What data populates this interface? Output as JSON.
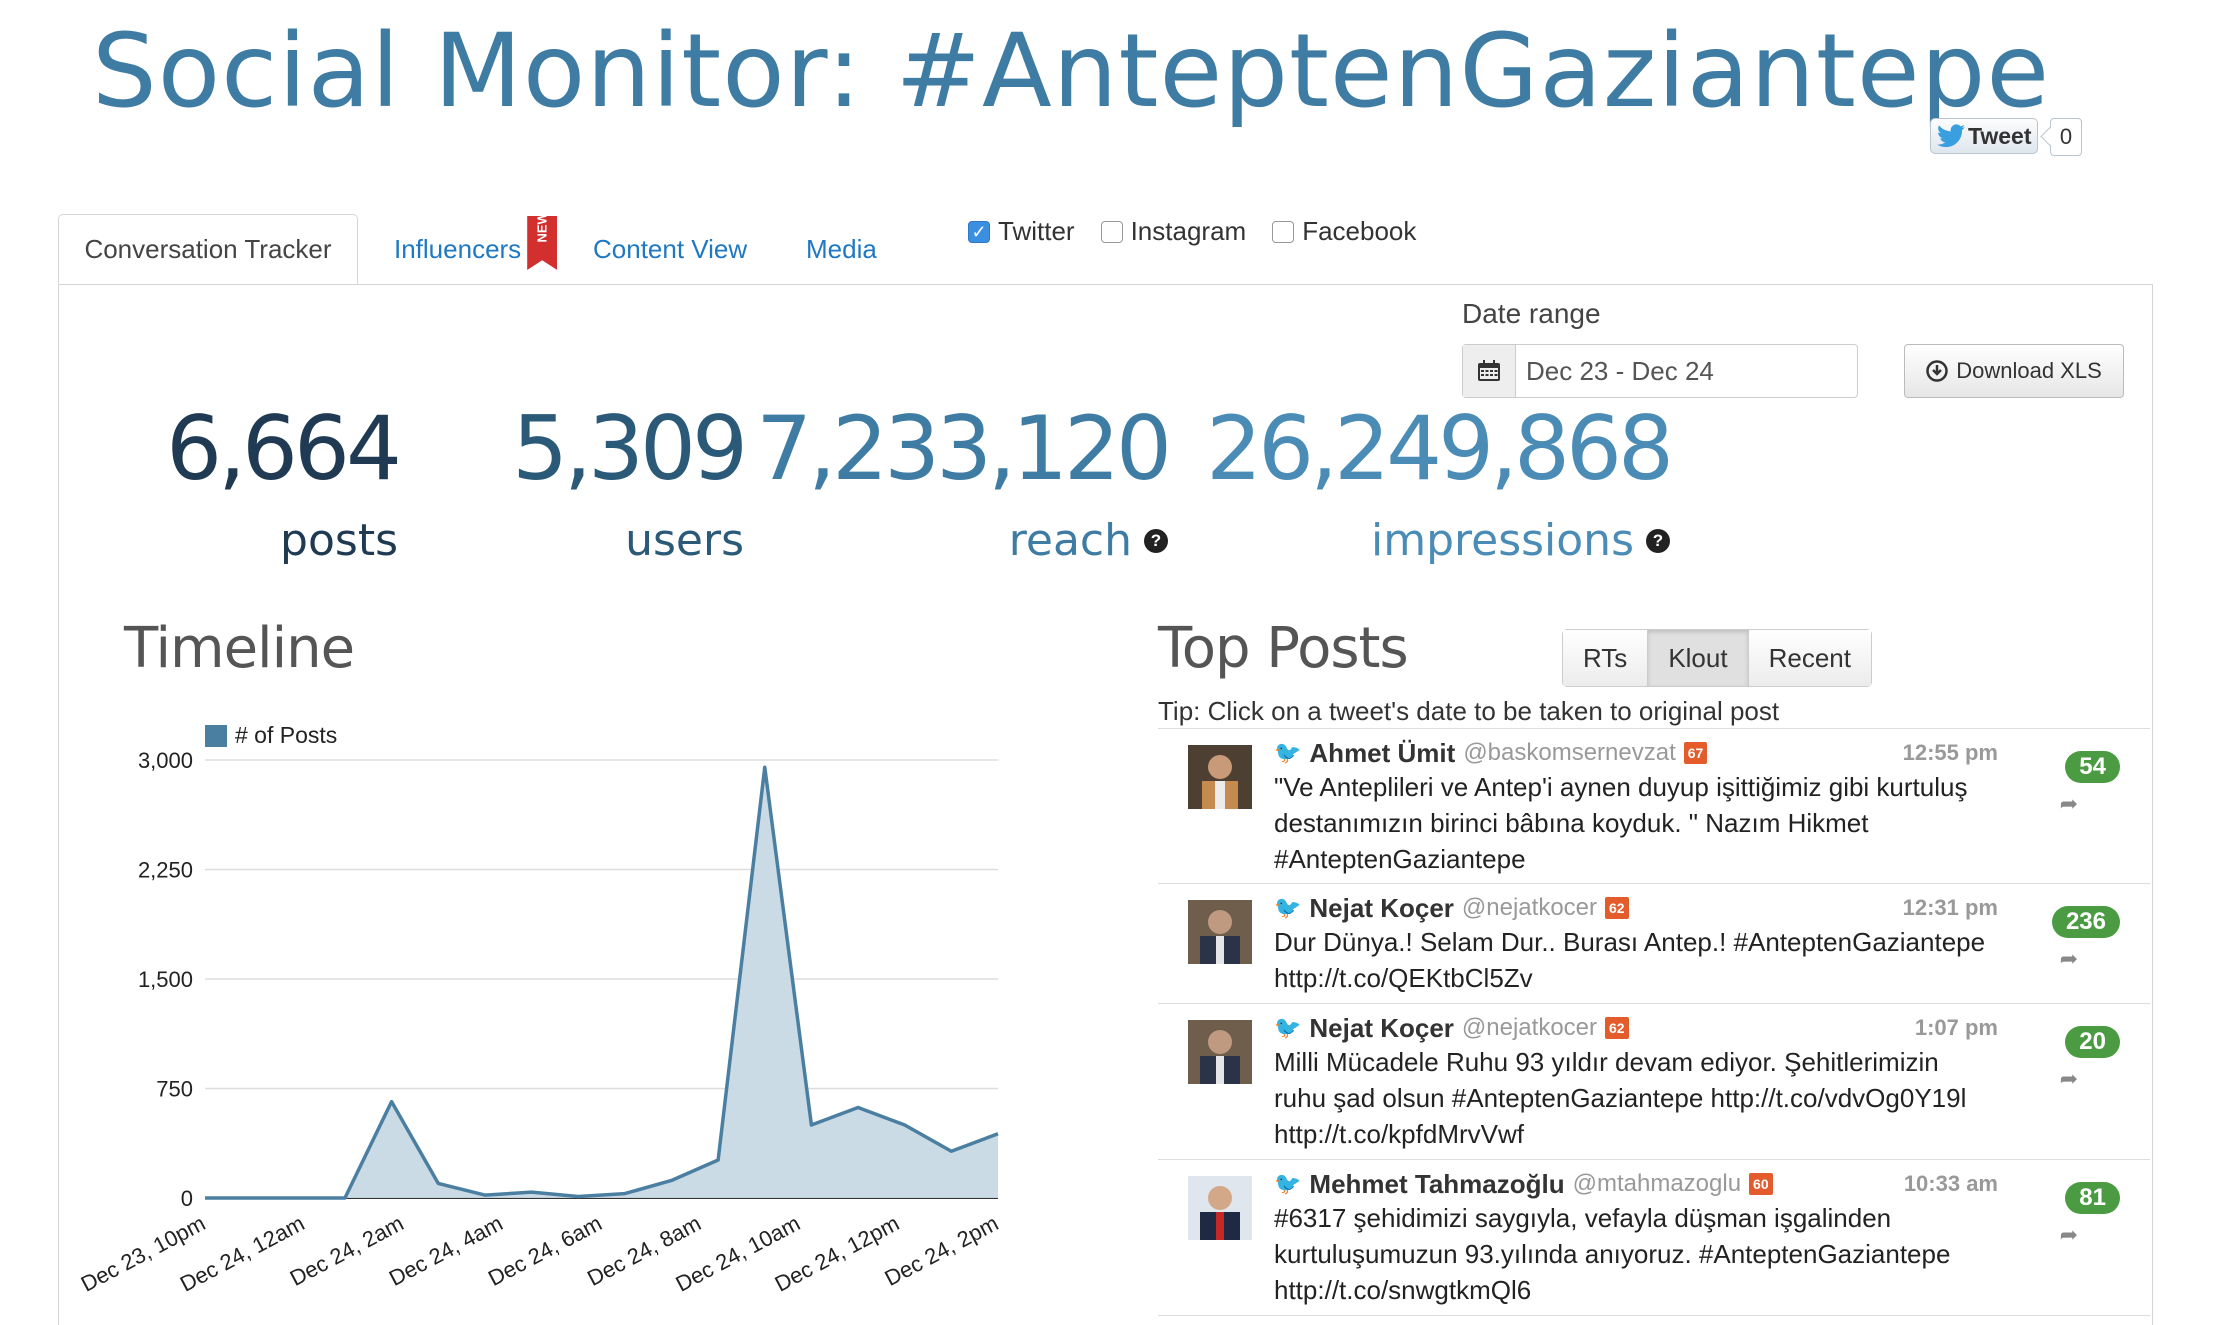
{
  "page": {
    "title": "Social Monitor: #AnteptenGaziantepe"
  },
  "share": {
    "tweet_label": "Tweet",
    "tweet_count": "0"
  },
  "tabs": [
    {
      "label": "Conversation Tracker",
      "active": true
    },
    {
      "label": "Influencers",
      "badge": "NEW"
    },
    {
      "label": "Content View"
    },
    {
      "label": "Media"
    }
  ],
  "filters": [
    {
      "label": "Twitter",
      "checked": true
    },
    {
      "label": "Instagram",
      "checked": false
    },
    {
      "label": "Facebook",
      "checked": false
    }
  ],
  "date_range": {
    "label": "Date range",
    "value": "Dec 23 - Dec 24"
  },
  "download": {
    "label": "Download XLS"
  },
  "stats": [
    {
      "value": "6,664",
      "label": "posts",
      "info": false,
      "color": "#1f3a52"
    },
    {
      "value": "5,309",
      "label": "users",
      "info": false,
      "color": "#2b5a78"
    },
    {
      "value": "7,233,120",
      "label": "reach",
      "info": true,
      "color": "#3f7ca3"
    },
    {
      "value": "26,249,868",
      "label": "impressions",
      "info": true,
      "color": "#4a8cb6"
    }
  ],
  "timeline": {
    "heading": "Timeline"
  },
  "chart_data": {
    "type": "area",
    "legend": "# of Posts",
    "series": [
      {
        "name": "# of Posts",
        "values": [
          0,
          0,
          0,
          0,
          660,
          100,
          20,
          40,
          10,
          30,
          120,
          260,
          2950,
          500,
          620,
          500,
          320,
          440
        ]
      }
    ],
    "x_tick_labels": [
      "Dec 23, 10pm",
      "Dec 24, 12am",
      "Dec 24, 2am",
      "Dec 24, 4am",
      "Dec 24, 6am",
      "Dec 24, 8am",
      "Dec 24, 10am",
      "Dec 24, 12pm",
      "Dec 24, 2pm"
    ],
    "y_ticks": [
      "0",
      "750",
      "1,500",
      "2,250",
      "3,000"
    ],
    "ylim": [
      0,
      3000
    ],
    "grid": true,
    "colors": {
      "fill": "#c8d9e4",
      "line": "#4b7fa2"
    }
  },
  "top_posts": {
    "heading": "Top Posts",
    "sort_options": [
      "RTs",
      "Klout",
      "Recent"
    ],
    "selected_sort": "Klout",
    "tip": "Tip: Click on a tweet's date to be taken to original post",
    "posts": [
      {
        "author": "Ahmet Ümit",
        "handle": "@baskomsernevzat",
        "klout": "67",
        "time": "12:55 pm",
        "text": "\"Ve Anteplileri ve Antep'i aynen duyup işittiğimiz gibi kurtuluş destanımızın birinci bâbına koyduk. \" Nazım Hikmet #AnteptenGaziantepe",
        "rts": "54"
      },
      {
        "author": "Nejat Koçer",
        "handle": "@nejatkocer",
        "klout": "62",
        "time": "12:31 pm",
        "text": "Dur Dünya.! Selam Dur.. Burası Antep.! #AnteptenGaziantepe http://t.co/QEKtbCl5Zv",
        "rts": "236"
      },
      {
        "author": "Nejat Koçer",
        "handle": "@nejatkocer",
        "klout": "62",
        "time": "1:07 pm",
        "text": "Milli Mücadele Ruhu 93 yıldır devam ediyor. Şehitlerimizin ruhu şad olsun #AnteptenGaziantepe http://t.co/vdvOg0Y19l http://t.co/kpfdMrvVwf",
        "rts": "20"
      },
      {
        "author": "Mehmet Tahmazoğlu",
        "handle": "@mtahmazoglu",
        "klout": "60",
        "time": "10:33 am",
        "text": "#6317 şehidimizi saygıyla, vefayla düşman işgalinden kurtuluşumuzun 93.yılında anıyoruz. #AnteptenGaziantepe http://t.co/snwgtkmQl6",
        "rts": "81"
      }
    ]
  }
}
